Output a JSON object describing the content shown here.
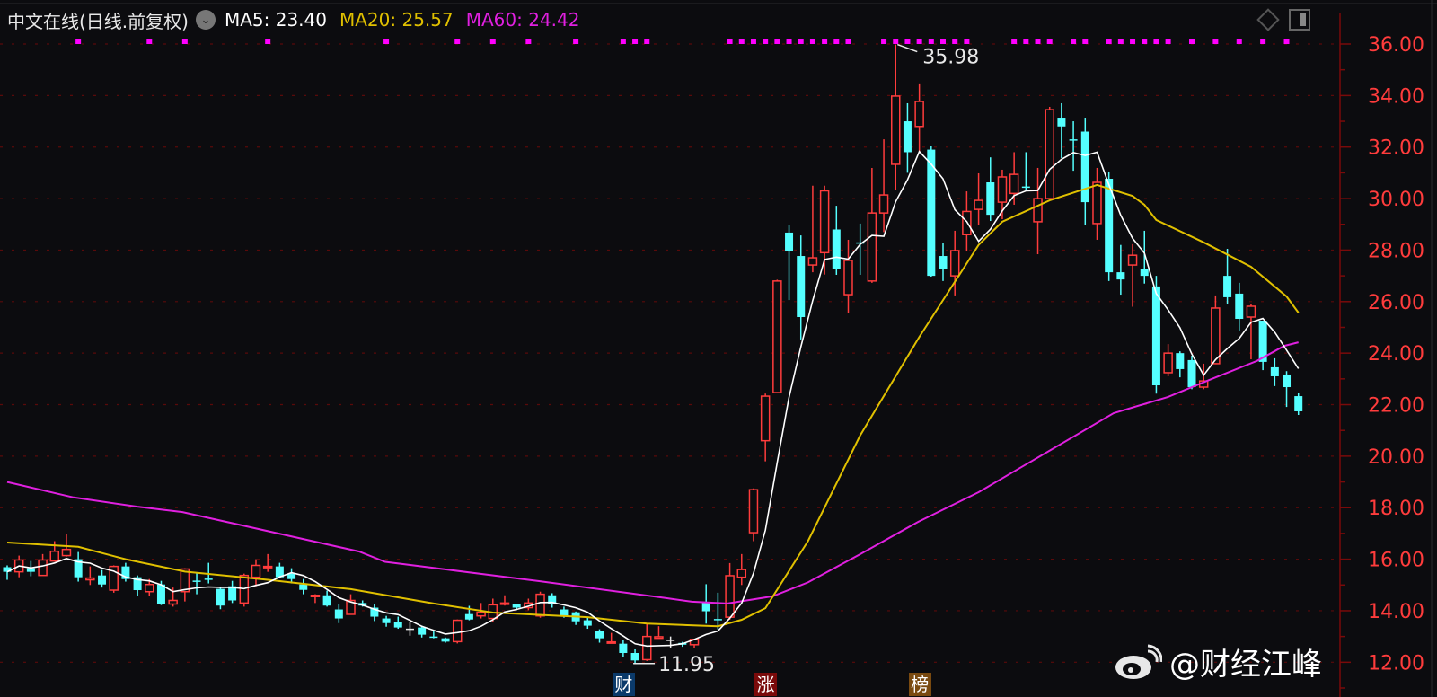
{
  "header": {
    "title": "中文在线(日线.前复权)",
    "ma5_label": "MA5: 23.40",
    "ma20_label": "MA20: 25.57",
    "ma60_label": "MA60: 24.42",
    "dropdown_icon": "chevron-down-circle-icon",
    "right_icons": [
      "diamond-icon",
      "panel-toggle-icon"
    ]
  },
  "colors": {
    "background": "#0c0c0f",
    "up": "#ff3c3c",
    "down": "#54ffff",
    "doji": "#e8e8e8",
    "ma5": "#ffffff",
    "ma20": "#e0c000",
    "ma60": "#e020e0",
    "grid": "#5a0a0a",
    "axis": "#7a0a0a",
    "signal_dots": "#ff00ff"
  },
  "markers": [
    {
      "text": "财",
      "color": "#0b3a6a",
      "index": 52
    },
    {
      "text": "涨",
      "color": "#7a0a0a",
      "index": 64
    },
    {
      "text": "榜",
      "color": "#7a4a10",
      "index": 77
    }
  ],
  "watermark": {
    "text": "@财经江峰",
    "icon": "weibo-icon"
  },
  "chart_data": {
    "type": "candlestick",
    "title": "中文在线(日线.前复权)",
    "ylim": [
      10.65,
      37.7
    ],
    "yticks": [
      "12.00",
      "14.00",
      "16.00",
      "18.00",
      "20.00",
      "22.00",
      "24.00",
      "26.00",
      "28.00",
      "30.00",
      "32.00",
      "34.00",
      "36.00"
    ],
    "grid": true,
    "high_annotation": {
      "label": "35.98",
      "index": 75,
      "value": 35.98
    },
    "low_annotation": {
      "label": "11.95",
      "index": 53,
      "value": 11.95
    },
    "ohlc": [
      [
        15.69,
        15.76,
        15.2,
        15.51
      ],
      [
        15.51,
        16.14,
        15.3,
        15.97
      ],
      [
        15.65,
        15.93,
        15.34,
        15.51
      ],
      [
        15.37,
        16.2,
        15.37,
        15.97
      ],
      [
        15.93,
        16.7,
        15.9,
        16.31
      ],
      [
        16.14,
        16.98,
        16.1,
        16.38
      ],
      [
        16.0,
        16.28,
        15.13,
        15.3
      ],
      [
        15.2,
        15.72,
        15.0,
        15.27
      ],
      [
        15.37,
        15.58,
        14.9,
        15.02
      ],
      [
        14.8,
        15.76,
        14.7,
        15.72
      ],
      [
        15.72,
        15.86,
        15.13,
        15.23
      ],
      [
        15.3,
        15.37,
        14.57,
        14.8
      ],
      [
        14.74,
        15.23,
        14.57,
        15.02
      ],
      [
        15.02,
        15.16,
        14.22,
        14.26
      ],
      [
        14.26,
        14.9,
        14.16,
        14.4
      ],
      [
        14.74,
        15.65,
        14.36,
        15.62
      ],
      [
        15.17,
        15.48,
        14.64,
        15.13
      ],
      [
        15.25,
        15.86,
        15.06,
        15.2
      ],
      [
        14.85,
        14.9,
        14.06,
        14.2
      ],
      [
        14.95,
        15.16,
        14.3,
        14.4
      ],
      [
        14.3,
        15.44,
        14.16,
        15.37
      ],
      [
        15.3,
        16.0,
        14.95,
        15.76
      ],
      [
        15.7,
        16.2,
        15.51,
        15.72
      ],
      [
        15.72,
        15.86,
        15.27,
        15.3
      ],
      [
        15.44,
        15.65,
        15.06,
        15.23
      ],
      [
        15.02,
        15.23,
        14.64,
        14.81
      ],
      [
        14.58,
        14.64,
        14.3,
        14.6
      ],
      [
        14.6,
        14.78,
        14.16,
        14.2
      ],
      [
        14.05,
        14.26,
        13.52,
        13.7
      ],
      [
        13.86,
        14.64,
        13.86,
        14.4
      ],
      [
        14.3,
        14.4,
        14.16,
        14.2
      ],
      [
        14.12,
        14.26,
        13.6,
        13.77
      ],
      [
        13.7,
        13.8,
        13.38,
        13.52
      ],
      [
        13.56,
        13.77,
        13.3,
        13.35
      ],
      [
        13.28,
        13.56,
        13.03,
        13.28
      ],
      [
        13.35,
        13.42,
        12.96,
        13.07
      ],
      [
        13.0,
        13.2,
        12.93,
        12.97
      ],
      [
        12.93,
        12.96,
        12.76,
        12.8
      ],
      [
        12.8,
        13.66,
        12.73,
        13.63
      ],
      [
        13.87,
        14.19,
        13.63,
        13.66
      ],
      [
        13.8,
        14.3,
        13.7,
        13.94
      ],
      [
        13.7,
        14.47,
        13.56,
        14.23
      ],
      [
        14.27,
        14.6,
        14.2,
        14.3
      ],
      [
        14.26,
        14.26,
        14.02,
        14.12
      ],
      [
        14.12,
        14.47,
        14.02,
        14.3
      ],
      [
        13.8,
        14.74,
        13.73,
        14.64
      ],
      [
        14.6,
        14.68,
        14.12,
        14.26
      ],
      [
        14.05,
        14.16,
        13.73,
        13.8
      ],
      [
        13.94,
        13.97,
        13.45,
        13.59
      ],
      [
        13.63,
        13.77,
        13.3,
        13.42
      ],
      [
        13.21,
        13.28,
        12.76,
        12.93
      ],
      [
        12.76,
        13.14,
        12.76,
        12.79
      ],
      [
        12.72,
        12.85,
        12.22,
        12.36
      ],
      [
        12.36,
        12.5,
        11.95,
        12.07
      ],
      [
        12.1,
        13.49,
        12.05,
        13.0
      ],
      [
        12.93,
        13.4,
        12.93,
        12.99
      ],
      [
        12.85,
        13.0,
        12.57,
        12.85
      ],
      [
        12.75,
        12.79,
        12.6,
        12.68
      ],
      [
        12.68,
        12.89,
        12.57,
        12.89
      ],
      [
        14.33,
        15.03,
        13.5,
        13.98
      ],
      [
        13.68,
        14.7,
        13.28,
        13.66
      ],
      [
        13.75,
        15.85,
        13.65,
        15.36
      ],
      [
        15.3,
        16.2,
        15.0,
        15.6
      ],
      [
        17.03,
        18.75,
        16.7,
        18.7
      ],
      [
        20.6,
        22.43,
        19.8,
        22.33
      ],
      [
        22.47,
        26.85,
        22.47,
        26.8
      ],
      [
        28.68,
        28.96,
        26.06,
        27.98
      ],
      [
        27.77,
        28.57,
        24.53,
        25.4
      ],
      [
        27.42,
        30.5,
        27.14,
        27.7
      ],
      [
        27.9,
        30.5,
        27.05,
        30.3
      ],
      [
        28.8,
        29.72,
        27.04,
        27.25
      ],
      [
        26.27,
        28.4,
        25.57,
        27.6
      ],
      [
        28.3,
        29.03,
        27.04,
        28.26
      ],
      [
        26.8,
        31.19,
        26.73,
        29.44
      ],
      [
        29.44,
        32.3,
        28.7,
        30.14
      ],
      [
        31.33,
        35.98,
        30.35,
        33.98
      ],
      [
        33.0,
        33.7,
        31.0,
        31.8
      ],
      [
        32.8,
        34.47,
        31.8,
        33.77
      ],
      [
        31.9,
        32.06,
        26.97,
        27.0
      ],
      [
        27.77,
        28.26,
        26.8,
        27.28
      ],
      [
        27.0,
        28.75,
        26.24,
        27.98
      ],
      [
        28.6,
        30.28,
        27.95,
        29.5
      ],
      [
        29.58,
        30.98,
        28.99,
        29.93
      ],
      [
        30.63,
        31.6,
        29.13,
        29.37
      ],
      [
        29.86,
        31.12,
        29.2,
        30.84
      ],
      [
        30.2,
        31.8,
        29.76,
        30.94
      ],
      [
        30.47,
        31.8,
        30.3,
        30.42
      ],
      [
        29.1,
        31.19,
        27.84,
        30.0
      ],
      [
        30.0,
        33.56,
        30.0,
        33.45
      ],
      [
        33.14,
        33.7,
        31.57,
        32.8
      ],
      [
        32.3,
        33.0,
        31.08,
        32.25
      ],
      [
        32.6,
        33.14,
        28.99,
        29.86
      ],
      [
        29.03,
        31.19,
        28.4,
        30.63
      ],
      [
        30.77,
        31.05,
        26.8,
        27.14
      ],
      [
        27.14,
        28.2,
        26.27,
        26.86
      ],
      [
        27.42,
        28.23,
        25.8,
        27.8
      ],
      [
        27.28,
        28.75,
        26.7,
        27.0
      ],
      [
        26.59,
        27.0,
        22.43,
        22.75
      ],
      [
        23.24,
        24.35,
        23.1,
        24.0
      ],
      [
        24.0,
        24.07,
        23.06,
        23.38
      ],
      [
        23.73,
        23.9,
        22.6,
        22.68
      ],
      [
        22.68,
        23.59,
        22.6,
        22.92
      ],
      [
        23.59,
        26.24,
        23.59,
        25.75
      ],
      [
        27.0,
        28.05,
        25.9,
        26.17
      ],
      [
        26.31,
        26.73,
        24.88,
        25.33
      ],
      [
        25.4,
        25.89,
        23.76,
        25.82
      ],
      [
        25.26,
        25.26,
        23.34,
        23.66
      ],
      [
        23.45,
        23.8,
        22.72,
        23.1
      ],
      [
        23.17,
        23.3,
        21.91,
        22.68
      ],
      [
        22.33,
        22.47,
        21.6,
        21.74
      ]
    ],
    "ma20": [
      [
        0,
        16.65
      ],
      [
        6,
        16.48
      ],
      [
        10,
        16.0
      ],
      [
        15,
        15.52
      ],
      [
        22,
        15.2
      ],
      [
        29,
        14.84
      ],
      [
        36,
        14.28
      ],
      [
        41,
        13.93
      ],
      [
        49,
        13.75
      ],
      [
        54,
        13.5
      ],
      [
        60,
        13.4
      ],
      [
        62,
        13.65
      ],
      [
        64,
        14.1
      ],
      [
        67.6,
        16.7
      ],
      [
        72,
        20.8
      ],
      [
        77,
        24.63
      ],
      [
        82,
        28.2
      ],
      [
        84,
        29.1
      ],
      [
        88,
        29.93
      ],
      [
        92,
        30.53
      ],
      [
        95,
        30.1
      ],
      [
        96,
        29.76
      ],
      [
        97,
        29.17
      ],
      [
        101,
        28.3
      ],
      [
        105,
        27.35
      ],
      [
        108,
        26.2
      ],
      [
        109,
        25.57
      ]
    ],
    "ma60": [
      [
        0,
        19.0
      ],
      [
        5.6,
        18.4
      ],
      [
        11,
        18.04
      ],
      [
        14.8,
        17.83
      ],
      [
        29.7,
        16.3
      ],
      [
        31.9,
        15.9
      ],
      [
        44.9,
        15.15
      ],
      [
        55.5,
        14.5
      ],
      [
        57.8,
        14.35
      ],
      [
        60.8,
        14.28
      ],
      [
        64.6,
        14.56
      ],
      [
        67.6,
        15.1
      ],
      [
        71.9,
        16.17
      ],
      [
        76.9,
        17.45
      ],
      [
        82,
        18.6
      ],
      [
        93.4,
        21.67
      ],
      [
        98,
        22.3
      ],
      [
        101.7,
        23.0
      ],
      [
        105.5,
        23.7
      ],
      [
        107.8,
        24.28
      ],
      [
        109,
        24.42
      ]
    ],
    "signal_dots": [
      6,
      12,
      15,
      22,
      32,
      38,
      41,
      44,
      48,
      52,
      53,
      54,
      61,
      62,
      63,
      64,
      65,
      66,
      67,
      68,
      69,
      70,
      71,
      74,
      75,
      76,
      77,
      78,
      79,
      80,
      81,
      85,
      86,
      87,
      88,
      90,
      91,
      93,
      94,
      95,
      96,
      97,
      98,
      100,
      102,
      104,
      106,
      108
    ]
  }
}
